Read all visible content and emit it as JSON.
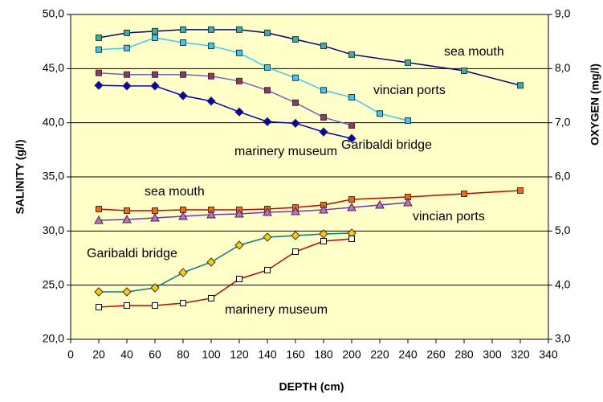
{
  "chart_data": {
    "type": "line",
    "xlabel": "DEPTH (cm)",
    "ylabel": "SALINITY (g/l)",
    "y2label": "OXYGEN (mg/l)",
    "xlim": [
      0,
      340
    ],
    "xticks": [
      0,
      20,
      40,
      60,
      80,
      100,
      120,
      140,
      160,
      180,
      200,
      220,
      240,
      260,
      280,
      300,
      320,
      340
    ],
    "ylim": [
      20,
      50
    ],
    "yticks": [
      {
        "value": 20,
        "label": "20,0"
      },
      {
        "value": 25,
        "label": "25,0"
      },
      {
        "value": 30,
        "label": "30,0"
      },
      {
        "value": 35,
        "label": "35,0"
      },
      {
        "value": 40,
        "label": "40,0"
      },
      {
        "value": 45,
        "label": "45,0"
      },
      {
        "value": 50,
        "label": "50,0"
      }
    ],
    "y2lim": [
      3,
      9
    ],
    "y2ticks": [
      {
        "value": 3,
        "label": "3,0"
      },
      {
        "value": 4,
        "label": "4,0"
      },
      {
        "value": 5,
        "label": "5,0"
      },
      {
        "value": 6,
        "label": "6,0"
      },
      {
        "value": 7,
        "label": "7,0"
      },
      {
        "value": 8,
        "label": "8,0"
      },
      {
        "value": 9,
        "label": "9,0"
      }
    ],
    "grid": true,
    "background": "#ffffc8",
    "series": [
      {
        "name": "sea mouth",
        "axis": "y2",
        "color": "#000080",
        "marker": "square",
        "marker_color": "#33b3a6",
        "x": [
          20,
          40,
          60,
          80,
          100,
          120,
          140,
          160,
          180,
          200,
          240,
          280,
          320
        ],
        "values": [
          8.57,
          8.66,
          8.69,
          8.72,
          8.72,
          8.72,
          8.66,
          8.54,
          8.42,
          8.26,
          8.11,
          7.96,
          7.69
        ]
      },
      {
        "name": "vincian ports",
        "axis": "y2",
        "color": "#33ccff",
        "marker": "square",
        "marker_color": "#33ccff",
        "x": [
          20,
          40,
          60,
          80,
          100,
          120,
          140,
          160,
          180,
          200,
          220,
          240
        ],
        "values": [
          8.35,
          8.38,
          8.57,
          8.48,
          8.42,
          8.29,
          8.02,
          7.83,
          7.6,
          7.47,
          7.17,
          7.04
        ]
      },
      {
        "name": "marinery museum",
        "axis": "y2",
        "color": "#6666cc",
        "marker": "square",
        "marker_color": "#993366",
        "x": [
          20,
          40,
          60,
          80,
          100,
          120,
          140,
          160,
          180,
          200
        ],
        "values": [
          7.92,
          7.89,
          7.89,
          7.89,
          7.86,
          7.77,
          7.6,
          7.37,
          7.1,
          6.95
        ]
      },
      {
        "name": "Garibaldi bridge",
        "axis": "y2",
        "color": "#0000cc",
        "marker": "diamond",
        "marker_color": "#0000cc",
        "x": [
          20,
          40,
          60,
          80,
          100,
          120,
          140,
          160,
          180,
          200
        ],
        "values": [
          7.69,
          7.68,
          7.68,
          7.5,
          7.4,
          7.2,
          7.02,
          6.99,
          6.83,
          6.71
        ]
      },
      {
        "name": "sea mouth",
        "axis": "y",
        "color": "#cc0000",
        "marker": "square",
        "marker_color": "#ff6600",
        "x": [
          20,
          40,
          60,
          80,
          100,
          120,
          140,
          160,
          180,
          200,
          240,
          280,
          320
        ],
        "values": [
          32.03,
          31.88,
          31.88,
          31.96,
          31.96,
          31.96,
          32.03,
          32.18,
          32.4,
          32.92,
          33.14,
          33.44,
          33.74
        ]
      },
      {
        "name": "vincian ports",
        "axis": "y",
        "color": "#6633cc",
        "marker": "triangle",
        "marker_color": "#cc66cc",
        "x": [
          20,
          40,
          60,
          80,
          100,
          120,
          140,
          160,
          180,
          200,
          220,
          240
        ],
        "values": [
          30.99,
          31.06,
          31.21,
          31.36,
          31.51,
          31.58,
          31.73,
          31.81,
          31.96,
          32.18,
          32.4,
          32.62
        ]
      },
      {
        "name": "Garibaldi bridge",
        "axis": "y",
        "color": "#008080",
        "marker": "diamond",
        "marker_color": "#ffcc00",
        "x": [
          20,
          40,
          60,
          80,
          100,
          120,
          140,
          160,
          180,
          200
        ],
        "values": [
          24.38,
          24.38,
          24.75,
          26.16,
          27.13,
          28.69,
          29.43,
          29.58,
          29.73,
          29.8
        ]
      },
      {
        "name": "marinery museum",
        "axis": "y",
        "color": "#cc0000",
        "marker": "square",
        "marker_color": "#ffffcc",
        "x": [
          20,
          40,
          60,
          80,
          100,
          120,
          140,
          160,
          180,
          200
        ],
        "values": [
          22.97,
          23.12,
          23.12,
          23.34,
          23.79,
          25.57,
          26.39,
          28.09,
          29.06,
          29.28
        ]
      }
    ]
  }
}
